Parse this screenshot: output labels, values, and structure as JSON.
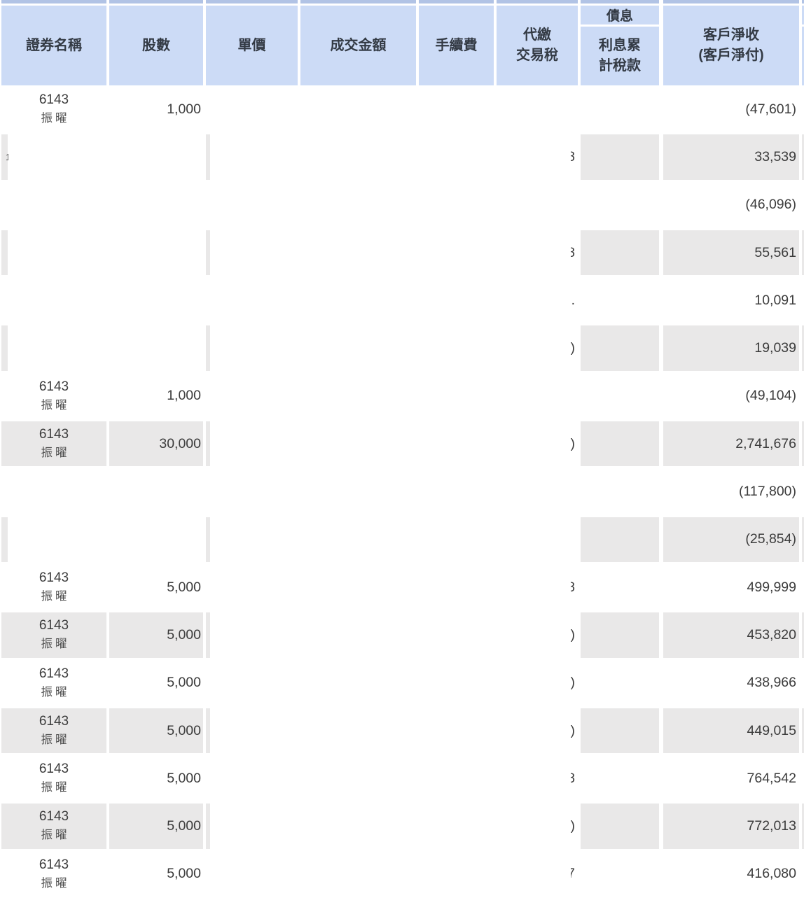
{
  "colors": {
    "header_bg": "#ccdbf6",
    "top_strip": "#b1c3e5",
    "row_band": "#e9e8e8",
    "text": "#3c3c3c",
    "header_text": "#333a44"
  },
  "table": {
    "header": {
      "security_name": "證券名稱",
      "shares": "股數",
      "unit_price": "單價",
      "trade_amount": "成交金額",
      "fee": "手續費",
      "tax": "代繳\n交易稅",
      "bond_interest_group": "債息",
      "interest_accrued_tax": "利息累\n計稅款",
      "client_net": "客戶淨收\n(客戶淨付)"
    },
    "rows": [
      {
        "code": "6143",
        "name": "振曜",
        "shares": "1,000",
        "net": "(47,601)",
        "shaded": false,
        "left_covered": false,
        "fragment": "",
        "left_fragment": ""
      },
      {
        "code": "",
        "name": "",
        "shares": "",
        "net": "33,539",
        "shaded": true,
        "left_covered": true,
        "fragment": "8",
        "left_fragment": "1"
      },
      {
        "code": "",
        "name": "",
        "shares": "",
        "net": "(46,096)",
        "shaded": false,
        "left_covered": true,
        "fragment": "",
        "left_fragment": ""
      },
      {
        "code": "",
        "name": "",
        "shares": "",
        "net": "55,561",
        "shaded": true,
        "left_covered": true,
        "fragment": "8",
        "left_fragment": ""
      },
      {
        "code": "",
        "name": "",
        "shares": "",
        "net": "10,091",
        "shaded": false,
        "left_covered": true,
        "fragment": ".",
        "left_fragment": ""
      },
      {
        "code": "",
        "name": "",
        "shares": "",
        "net": "19,039",
        "shaded": true,
        "left_covered": true,
        "fragment": ")",
        "left_fragment": ""
      },
      {
        "code": "6143",
        "name": "振曜",
        "shares": "1,000",
        "net": "(49,104)",
        "shaded": false,
        "left_covered": false,
        "fragment": "",
        "left_fragment": ""
      },
      {
        "code": "6143",
        "name": "振曜",
        "shares": "30,000",
        "net": "2,741,676",
        "shaded": true,
        "left_covered": false,
        "fragment": ")",
        "left_fragment": ""
      },
      {
        "code": "",
        "name": "",
        "shares": "",
        "net": "(117,800)",
        "shaded": false,
        "left_covered": true,
        "fragment": "",
        "left_fragment": ""
      },
      {
        "code": "",
        "name": "",
        "shares": "",
        "net": "(25,854)",
        "shaded": true,
        "left_covered": true,
        "fragment": "",
        "left_fragment": ""
      },
      {
        "code": "6143",
        "name": "振曜",
        "shares": "5,000",
        "net": "499,999",
        "shaded": false,
        "left_covered": false,
        "fragment": "8",
        "left_fragment": ""
      },
      {
        "code": "6143",
        "name": "振曜",
        "shares": "5,000",
        "net": "453,820",
        "shaded": true,
        "left_covered": false,
        "fragment": ")",
        "left_fragment": ""
      },
      {
        "code": "6143",
        "name": "振曜",
        "shares": "5,000",
        "net": "438,966",
        "shaded": false,
        "left_covered": false,
        "fragment": ")",
        "left_fragment": ""
      },
      {
        "code": "6143",
        "name": "振曜",
        "shares": "5,000",
        "net": "449,015",
        "shaded": true,
        "left_covered": false,
        "fragment": ")",
        "left_fragment": ""
      },
      {
        "code": "6143",
        "name": "振曜",
        "shares": "5,000",
        "net": "764,542",
        "shaded": false,
        "left_covered": false,
        "fragment": "8",
        "left_fragment": ""
      },
      {
        "code": "6143",
        "name": "振曜",
        "shares": "5,000",
        "net": "772,013",
        "shaded": true,
        "left_covered": false,
        "fragment": ")",
        "left_fragment": ""
      },
      {
        "code": "6143",
        "name": "振曜",
        "shares": "5,000",
        "net": "416,080",
        "shaded": false,
        "left_covered": false,
        "fragment": "7",
        "left_fragment": ""
      }
    ]
  }
}
